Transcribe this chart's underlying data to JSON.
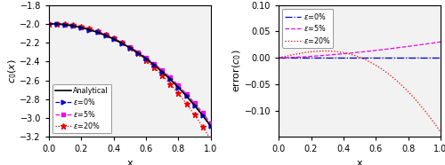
{
  "xlim": [
    0,
    1
  ],
  "left_ylim": [
    -3.2,
    -1.8
  ],
  "left_yticks": [
    -3.2,
    -3.0,
    -2.8,
    -2.6,
    -2.4,
    -2.2,
    -2.0,
    -1.8
  ],
  "right_ylim": [
    -0.15,
    0.1
  ],
  "right_yticks": [
    -0.1,
    -0.05,
    0.0,
    0.05,
    0.1
  ],
  "left_ylabel": "$c_0(x)$",
  "right_ylabel": "error($c_0$)",
  "xlabel": "x",
  "analytical_color": "#000000",
  "eps0_color": "#0000EE",
  "eps5_color": "#EE00EE",
  "eps20_color": "#EE0000",
  "bg_color": "#F2F2F2",
  "legend_left": [
    "Analytical",
    "$\\varepsilon$=0%",
    "$\\varepsilon$=5%",
    "$\\varepsilon$=20%"
  ],
  "legend_right": [
    "$\\varepsilon$=0%",
    "$\\varepsilon$=5%",
    "$\\varepsilon$=20%"
  ],
  "n_pts": 21,
  "n_curve": 300
}
